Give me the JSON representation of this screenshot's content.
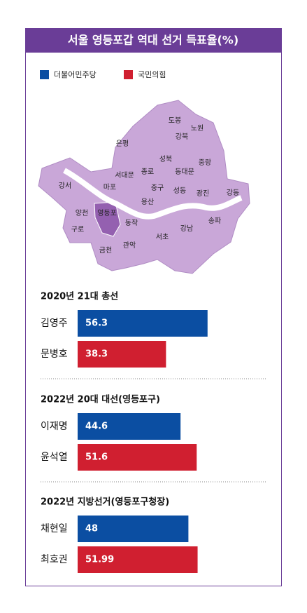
{
  "header": {
    "title": "서울 영등포갑 역대 선거 득표율(%)"
  },
  "legend": [
    {
      "name": "더불어민주당",
      "color": "#0b4ea2"
    },
    {
      "name": "국민의힘",
      "color": "#d01f30"
    }
  ],
  "map": {
    "districts": [
      "도봉",
      "노원",
      "강북",
      "은평",
      "성북",
      "중랑",
      "종로",
      "동대문",
      "서대문",
      "마포",
      "중구",
      "성동",
      "광진",
      "강동",
      "강서",
      "용산",
      "양천",
      "영등포",
      "동작",
      "송파",
      "강남",
      "서초",
      "구로",
      "관악",
      "금천"
    ]
  },
  "chart_data": [
    {
      "type": "bar",
      "title": "2020년 21대 총선",
      "categories": [
        "김영주",
        "문병호"
      ],
      "values": [
        56.3,
        38.3
      ],
      "colors": [
        "#0b4ea2",
        "#d01f30"
      ]
    },
    {
      "type": "bar",
      "title": "2022년 20대 대선(영등포구)",
      "categories": [
        "이재명",
        "윤석열"
      ],
      "values": [
        44.6,
        51.6
      ],
      "colors": [
        "#0b4ea2",
        "#d01f30"
      ]
    },
    {
      "type": "bar",
      "title": "2022년 지방선거(영등포구청장)",
      "categories": [
        "채현일",
        "최호권"
      ],
      "values": [
        48,
        51.99
      ],
      "colors": [
        "#0b4ea2",
        "#d01f30"
      ]
    }
  ]
}
